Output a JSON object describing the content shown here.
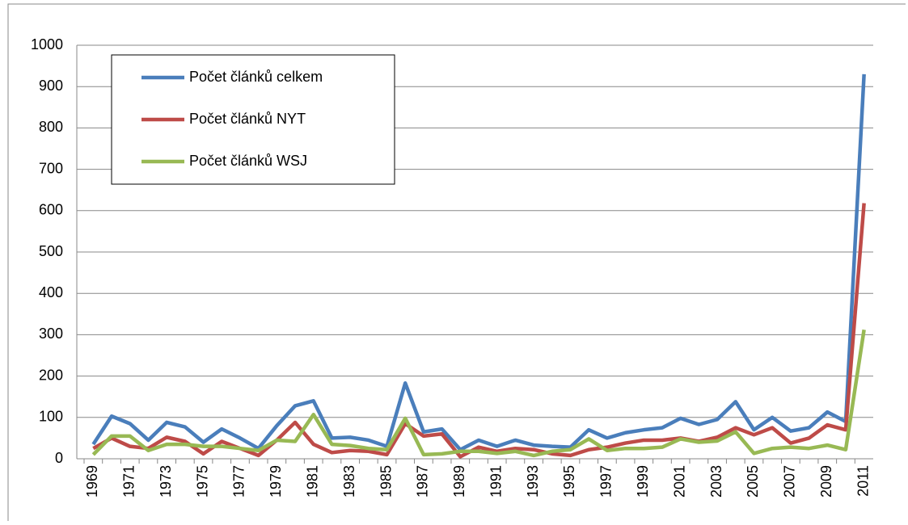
{
  "chart_data": {
    "type": "line",
    "categories": [
      "1969",
      null,
      "1971",
      null,
      "1973",
      null,
      "1975",
      null,
      "1977",
      null,
      "1979",
      null,
      "1981",
      null,
      "1983",
      null,
      "1985",
      null,
      "1987",
      null,
      "1989",
      null,
      "1991",
      null,
      "1993",
      null,
      "1995",
      null,
      "1997",
      null,
      "1999",
      null,
      "2001",
      null,
      "2003",
      null,
      "2005",
      null,
      "2007",
      null,
      "2009",
      null,
      "2011"
    ],
    "series": [
      {
        "name": "Počet článků celkem",
        "color": "#4a7ebb",
        "values": [
          35,
          103,
          85,
          45,
          88,
          77,
          40,
          72,
          50,
          25,
          80,
          128,
          140,
          50,
          52,
          45,
          30,
          183,
          65,
          72,
          22,
          45,
          30,
          45,
          33,
          30,
          28,
          70,
          50,
          63,
          70,
          75,
          98,
          83,
          95,
          138,
          70,
          100,
          67,
          75,
          113,
          90,
          930
        ]
      },
      {
        "name": "Počet článků NYT",
        "color": "#be4b48",
        "values": [
          25,
          50,
          30,
          25,
          52,
          42,
          12,
          42,
          25,
          8,
          45,
          88,
          35,
          15,
          20,
          18,
          10,
          85,
          55,
          60,
          5,
          28,
          18,
          25,
          22,
          12,
          8,
          22,
          28,
          38,
          45,
          45,
          50,
          42,
          52,
          75,
          58,
          75,
          38,
          50,
          82,
          70,
          618
        ]
      },
      {
        "name": "Počet článků WSJ",
        "color": "#98b954",
        "values": [
          10,
          55,
          55,
          20,
          35,
          35,
          30,
          30,
          25,
          20,
          45,
          42,
          107,
          35,
          32,
          25,
          22,
          98,
          10,
          12,
          18,
          18,
          13,
          18,
          8,
          18,
          22,
          48,
          20,
          25,
          25,
          28,
          48,
          40,
          43,
          65,
          13,
          25,
          28,
          25,
          33,
          22,
          312
        ]
      }
    ],
    "ylim": [
      0,
      1000
    ],
    "yticks": [
      0,
      100,
      200,
      300,
      400,
      500,
      600,
      700,
      800,
      900,
      1000
    ],
    "grid": true,
    "legend": "top-left"
  }
}
